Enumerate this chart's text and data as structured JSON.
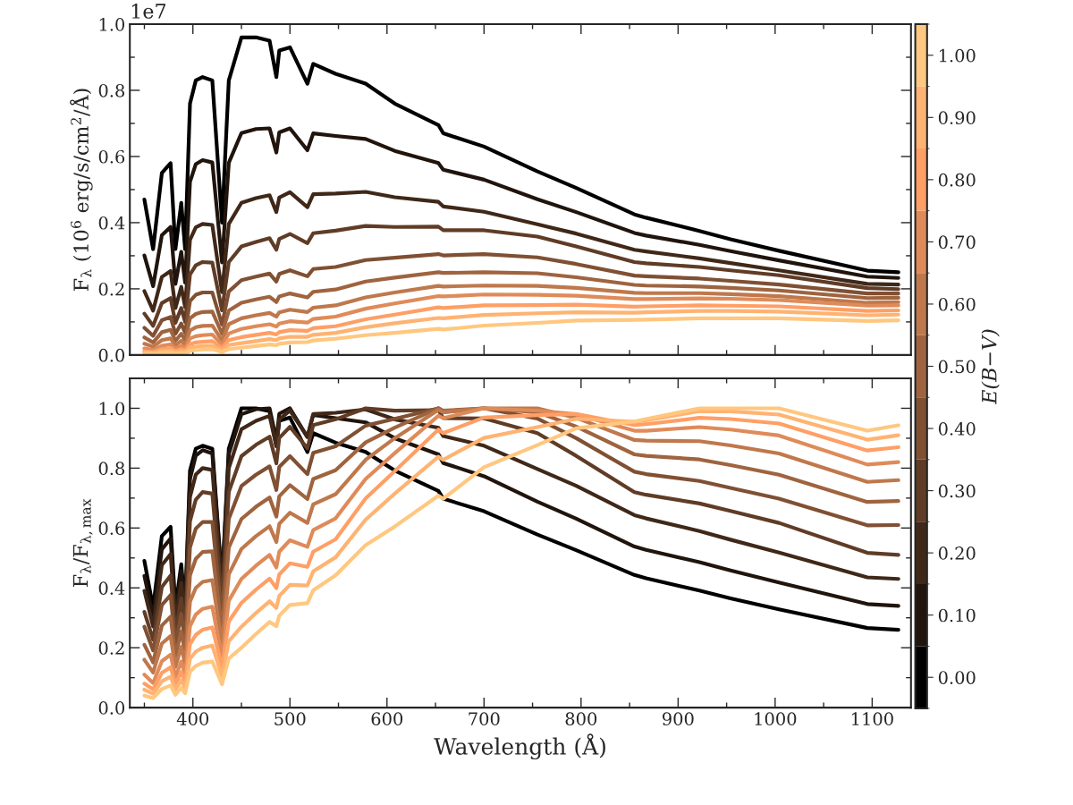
{
  "chart_data": [
    {
      "type": "line",
      "ylabel": "F$_{λ}$ (10$^{6}$ erg/s/cm$^{2}$/Å)",
      "annotations": [
        "1e7"
      ],
      "tick_labels": "y",
      "grid": false,
      "xlim": [
        335,
        1140
      ],
      "xticks": [
        400,
        500,
        600,
        700,
        800,
        900,
        1000,
        1100
      ],
      "ylim": [
        0,
        1.0
      ],
      "yticks": [
        {
          "value": 0,
          "label": "0.0"
        },
        {
          "value": 0.2,
          "label": "0.2"
        },
        {
          "value": 0.4,
          "label": "0.4"
        },
        {
          "value": 0.6,
          "label": "0.6"
        },
        {
          "value": 0.8,
          "label": "0.8"
        },
        {
          "value": 1.0,
          "label": "1.0"
        }
      ],
      "clabel": "E(B−V)",
      "clim": [
        -0.05,
        1.05
      ],
      "cticks": [
        {
          "value": 0,
          "label": "0.00"
        },
        {
          "value": 0.1,
          "label": "0.10"
        },
        {
          "value": 0.2,
          "label": "0.20"
        },
        {
          "value": 0.3,
          "label": "0.30"
        },
        {
          "value": 0.4,
          "label": "0.40"
        },
        {
          "value": 0.5,
          "label": "0.50"
        },
        {
          "value": 0.6,
          "label": "0.60"
        },
        {
          "value": 0.7,
          "label": "0.70"
        },
        {
          "value": 0.8,
          "label": "0.80"
        },
        {
          "value": 0.9,
          "label": "0.90"
        },
        {
          "value": 1.0,
          "label": "1.00"
        }
      ],
      "x": [
        350,
        359,
        368,
        377,
        382,
        388,
        392,
        397,
        403,
        410,
        420,
        430,
        437,
        450,
        465,
        479,
        486,
        489,
        500,
        518,
        524,
        547,
        578,
        608,
        653,
        658,
        700,
        755,
        795,
        855,
        867,
        922,
        954,
        1004,
        1095,
        1127
      ],
      "series": [
        {
          "color": "#000000",
          "values": [
            0.47,
            0.32,
            0.55,
            0.58,
            0.32,
            0.46,
            0.32,
            0.76,
            0.83,
            0.84,
            0.83,
            0.4,
            0.83,
            0.96,
            0.96,
            0.95,
            0.84,
            0.92,
            0.93,
            0.82,
            0.88,
            0.85,
            0.82,
            0.76,
            0.695,
            0.67,
            0.63,
            0.555,
            0.505,
            0.425,
            0.415,
            0.375,
            0.35,
            0.315,
            0.255,
            0.25
          ]
        },
        {
          "color": "#20140d",
          "values": [
            0.301,
            0.208,
            0.362,
            0.387,
            0.215,
            0.312,
            0.219,
            0.523,
            0.577,
            0.589,
            0.582,
            0.28,
            0.581,
            0.671,
            0.683,
            0.685,
            0.612,
            0.673,
            0.685,
            0.619,
            0.67,
            0.662,
            0.653,
            0.617,
            0.58,
            0.56,
            0.53,
            0.471,
            0.432,
            0.369,
            0.361,
            0.333,
            0.314,
            0.286,
            0.237,
            0.233
          ]
        },
        {
          "color": "#402819",
          "values": [
            0.193,
            0.134,
            0.236,
            0.254,
            0.142,
            0.206,
            0.145,
            0.348,
            0.386,
            0.396,
            0.393,
            0.19,
            0.396,
            0.46,
            0.474,
            0.483,
            0.432,
            0.476,
            0.492,
            0.447,
            0.486,
            0.488,
            0.493,
            0.477,
            0.463,
            0.449,
            0.433,
            0.395,
            0.367,
            0.318,
            0.313,
            0.292,
            0.278,
            0.256,
            0.215,
            0.213
          ]
        },
        {
          "color": "#603c26",
          "values": [
            0.125,
            0.088,
            0.157,
            0.172,
            0.097,
            0.142,
            0.1,
            0.243,
            0.271,
            0.281,
            0.279,
            0.135,
            0.281,
            0.328,
            0.342,
            0.353,
            0.318,
            0.351,
            0.366,
            0.338,
            0.368,
            0.376,
            0.39,
            0.387,
            0.388,
            0.377,
            0.377,
            0.358,
            0.328,
            0.281,
            0.277,
            0.266,
            0.256,
            0.241,
            0.202,
            0.199
          ]
        },
        {
          "color": "#805033",
          "values": [
            0.082,
            0.058,
            0.105,
            0.115,
            0.064,
            0.095,
            0.067,
            0.163,
            0.182,
            0.189,
            0.189,
            0.092,
            0.192,
            0.226,
            0.237,
            0.246,
            0.222,
            0.245,
            0.256,
            0.238,
            0.26,
            0.266,
            0.287,
            0.294,
            0.305,
            0.301,
            0.305,
            0.295,
            0.275,
            0.24,
            0.238,
            0.231,
            0.224,
            0.213,
            0.186,
            0.186
          ]
        },
        {
          "color": "#9f643f",
          "values": [
            0.053,
            0.038,
            0.069,
            0.076,
            0.043,
            0.064,
            0.045,
            0.111,
            0.124,
            0.13,
            0.131,
            0.064,
            0.134,
            0.158,
            0.168,
            0.176,
            0.16,
            0.177,
            0.186,
            0.174,
            0.191,
            0.198,
            0.222,
            0.234,
            0.25,
            0.248,
            0.25,
            0.247,
            0.235,
            0.212,
            0.21,
            0.207,
            0.203,
            0.195,
            0.172,
            0.173
          ]
        },
        {
          "color": "#bf784c",
          "values": [
            0.034,
            0.025,
            0.045,
            0.05,
            0.029,
            0.043,
            0.03,
            0.074,
            0.084,
            0.088,
            0.089,
            0.044,
            0.093,
            0.111,
            0.12,
            0.127,
            0.116,
            0.129,
            0.137,
            0.13,
            0.143,
            0.15,
            0.174,
            0.189,
            0.209,
            0.207,
            0.21,
            0.209,
            0.203,
            0.188,
            0.187,
            0.187,
            0.184,
            0.178,
            0.158,
            0.16
          ]
        },
        {
          "color": "#df8b59",
          "values": [
            0.02,
            0.015,
            0.028,
            0.032,
            0.019,
            0.028,
            0.02,
            0.05,
            0.057,
            0.06,
            0.062,
            0.031,
            0.065,
            0.079,
            0.087,
            0.093,
            0.086,
            0.095,
            0.102,
            0.098,
            0.109,
            0.116,
            0.14,
            0.156,
            0.178,
            0.177,
            0.183,
            0.182,
            0.179,
            0.169,
            0.169,
            0.171,
            0.17,
            0.166,
            0.149,
            0.15
          ]
        },
        {
          "color": "#ff9f65",
          "values": [
            0.012,
            0.009,
            0.018,
            0.021,
            0.012,
            0.018,
            0.013,
            0.033,
            0.038,
            0.04,
            0.042,
            0.021,
            0.045,
            0.054,
            0.061,
            0.067,
            0.062,
            0.069,
            0.075,
            0.073,
            0.081,
            0.087,
            0.108,
            0.122,
            0.144,
            0.142,
            0.15,
            0.151,
            0.152,
            0.146,
            0.147,
            0.15,
            0.149,
            0.147,
            0.133,
            0.135
          ]
        },
        {
          "color": "#ffb372",
          "values": [
            0.008,
            0.006,
            0.012,
            0.014,
            0.008,
            0.012,
            0.009,
            0.022,
            0.025,
            0.027,
            0.028,
            0.014,
            0.03,
            0.036,
            0.042,
            0.048,
            0.045,
            0.05,
            0.055,
            0.055,
            0.061,
            0.067,
            0.084,
            0.096,
            0.112,
            0.111,
            0.121,
            0.126,
            0.129,
            0.128,
            0.129,
            0.133,
            0.133,
            0.131,
            0.12,
            0.122
          ]
        },
        {
          "color": "#ffc77f",
          "values": [
            0.004,
            0.004,
            0.007,
            0.008,
            0.005,
            0.007,
            0.005,
            0.013,
            0.015,
            0.017,
            0.017,
            0.009,
            0.018,
            0.022,
            0.027,
            0.032,
            0.03,
            0.034,
            0.038,
            0.039,
            0.044,
            0.049,
            0.06,
            0.067,
            0.079,
            0.077,
            0.089,
            0.097,
            0.104,
            0.106,
            0.107,
            0.111,
            0.111,
            0.111,
            0.103,
            0.105
          ]
        }
      ]
    },
    {
      "type": "line",
      "xlabel": "Wavelength (Å)",
      "ylabel": "F$_{λ}$/F$_{λ,max}$",
      "grid": false,
      "xlim": [
        335,
        1140
      ],
      "xticks": [
        400,
        500,
        600,
        700,
        800,
        900,
        1000,
        1100
      ],
      "ylim": [
        0,
        1.1
      ],
      "yticks": [
        {
          "value": 0,
          "label": "0.0"
        },
        {
          "value": 0.2,
          "label": "0.2"
        },
        {
          "value": 0.4,
          "label": "0.4"
        },
        {
          "value": 0.6,
          "label": "0.6"
        },
        {
          "value": 0.8,
          "label": "0.8"
        },
        {
          "value": 1.0,
          "label": "1.0"
        }
      ],
      "x": [
        350,
        359,
        368,
        377,
        382,
        388,
        392,
        397,
        403,
        410,
        420,
        430,
        437,
        450,
        465,
        479,
        486,
        489,
        500,
        518,
        524,
        547,
        578,
        608,
        653,
        658,
        700,
        755,
        795,
        855,
        867,
        922,
        954,
        1004,
        1095,
        1127
      ],
      "series": [
        {
          "color": "#000000",
          "values": [
            0.49,
            0.333,
            0.573,
            0.604,
            0.333,
            0.479,
            0.333,
            0.792,
            0.865,
            0.875,
            0.865,
            0.417,
            0.865,
            1.0,
            1.0,
            0.99,
            0.875,
            0.958,
            0.969,
            0.854,
            0.917,
            0.885,
            0.854,
            0.792,
            0.724,
            0.698,
            0.656,
            0.578,
            0.526,
            0.443,
            0.432,
            0.391,
            0.365,
            0.328,
            0.266,
            0.26
          ]
        },
        {
          "color": "#20140d",
          "values": [
            0.44,
            0.303,
            0.529,
            0.565,
            0.314,
            0.456,
            0.319,
            0.764,
            0.842,
            0.86,
            0.849,
            0.409,
            0.848,
            0.98,
            0.997,
            1.0,
            0.894,
            0.982,
            1.0,
            0.904,
            0.978,
            0.967,
            0.953,
            0.9,
            0.846,
            0.817,
            0.773,
            0.688,
            0.631,
            0.538,
            0.527,
            0.486,
            0.458,
            0.418,
            0.346,
            0.34
          ]
        },
        {
          "color": "#402819",
          "values": [
            0.39,
            0.271,
            0.476,
            0.513,
            0.286,
            0.417,
            0.293,
            0.703,
            0.779,
            0.8,
            0.794,
            0.384,
            0.8,
            0.93,
            0.958,
            0.975,
            0.873,
            0.962,
            0.993,
            0.904,
            0.981,
            0.985,
            0.996,
            0.963,
            0.935,
            0.907,
            0.875,
            0.797,
            0.741,
            0.643,
            0.632,
            0.59,
            0.561,
            0.518,
            0.435,
            0.43
          ]
        },
        {
          "color": "#603c26",
          "values": [
            0.32,
            0.226,
            0.403,
            0.441,
            0.248,
            0.365,
            0.257,
            0.623,
            0.695,
            0.72,
            0.715,
            0.347,
            0.721,
            0.84,
            0.878,
            0.905,
            0.816,
            0.901,
            0.938,
            0.866,
            0.944,
            0.963,
            1.0,
            0.992,
            0.994,
            0.967,
            0.966,
            0.917,
            0.841,
            0.72,
            0.711,
            0.682,
            0.657,
            0.617,
            0.517,
            0.51
          ]
        },
        {
          "color": "#805033",
          "values": [
            0.27,
            0.191,
            0.343,
            0.376,
            0.211,
            0.312,
            0.22,
            0.535,
            0.598,
            0.62,
            0.62,
            0.302,
            0.631,
            0.74,
            0.778,
            0.806,
            0.727,
            0.804,
            0.84,
            0.78,
            0.851,
            0.873,
            0.942,
            0.965,
            1.0,
            0.987,
            1.0,
            0.966,
            0.9,
            0.788,
            0.78,
            0.757,
            0.734,
            0.698,
            0.609,
            0.61
          ]
        },
        {
          "color": "#9f643f",
          "values": [
            0.21,
            0.151,
            0.274,
            0.304,
            0.172,
            0.255,
            0.181,
            0.442,
            0.497,
            0.52,
            0.522,
            0.255,
            0.535,
            0.63,
            0.671,
            0.702,
            0.638,
            0.706,
            0.743,
            0.697,
            0.764,
            0.793,
            0.886,
            0.935,
            1.0,
            0.992,
            1.0,
            0.987,
            0.939,
            0.846,
            0.841,
            0.829,
            0.81,
            0.778,
            0.687,
            0.69
          ]
        },
        {
          "color": "#bf784c",
          "values": [
            0.16,
            0.117,
            0.214,
            0.239,
            0.136,
            0.203,
            0.145,
            0.354,
            0.4,
            0.42,
            0.426,
            0.211,
            0.445,
            0.53,
            0.573,
            0.606,
            0.553,
            0.614,
            0.651,
            0.617,
            0.679,
            0.713,
            0.828,
            0.9,
            0.995,
            0.987,
            1.0,
            1.0,
            0.968,
            0.894,
            0.892,
            0.89,
            0.876,
            0.849,
            0.754,
            0.76
          ]
        },
        {
          "color": "#df8b59",
          "values": [
            0.11,
            0.082,
            0.155,
            0.177,
            0.102,
            0.154,
            0.11,
            0.272,
            0.311,
            0.33,
            0.337,
            0.168,
            0.357,
            0.43,
            0.474,
            0.51,
            0.468,
            0.521,
            0.559,
            0.537,
            0.593,
            0.632,
            0.764,
            0.85,
            0.975,
            0.967,
            1.0,
            0.992,
            0.98,
            0.925,
            0.925,
            0.937,
            0.929,
            0.909,
            0.812,
            0.82
          ]
        },
        {
          "color": "#ff9f65",
          "values": [
            0.08,
            0.061,
            0.116,
            0.135,
            0.078,
            0.119,
            0.086,
            0.212,
            0.243,
            0.26,
            0.268,
            0.135,
            0.288,
            0.35,
            0.394,
            0.431,
            0.399,
            0.445,
            0.482,
            0.47,
            0.521,
            0.562,
            0.699,
            0.79,
            0.929,
            0.917,
            0.969,
            0.977,
            0.981,
            0.944,
            0.947,
            0.968,
            0.964,
            0.949,
            0.859,
            0.87
          ]
        },
        {
          "color": "#ffb372",
          "values": [
            0.06,
            0.046,
            0.088,
            0.103,
            0.06,
            0.091,
            0.066,
            0.163,
            0.187,
            0.2,
            0.207,
            0.104,
            0.222,
            0.27,
            0.316,
            0.355,
            0.333,
            0.373,
            0.41,
            0.408,
            0.455,
            0.502,
            0.628,
            0.715,
            0.838,
            0.828,
            0.901,
            0.937,
            0.965,
            0.955,
            0.96,
            0.99,
            0.99,
            0.979,
            0.895,
            0.91
          ]
        },
        {
          "color": "#ffc77f",
          "values": [
            0.04,
            0.032,
            0.062,
            0.074,
            0.043,
            0.066,
            0.048,
            0.12,
            0.139,
            0.15,
            0.154,
            0.078,
            0.164,
            0.2,
            0.246,
            0.286,
            0.272,
            0.307,
            0.343,
            0.349,
            0.392,
            0.442,
            0.543,
            0.605,
            0.708,
            0.698,
            0.803,
            0.877,
            0.933,
            0.956,
            0.964,
            1.0,
            1.0,
            1.0,
            0.925,
            0.943
          ]
        }
      ]
    }
  ]
}
